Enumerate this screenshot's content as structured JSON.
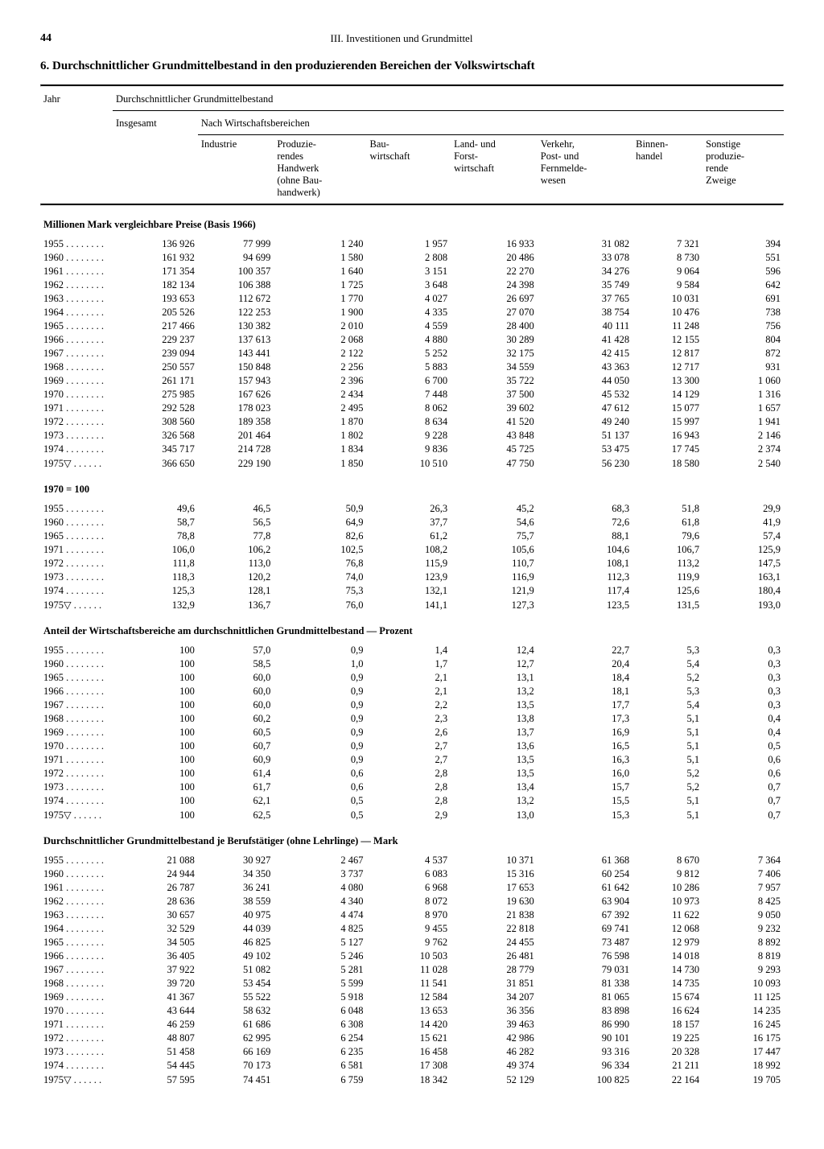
{
  "page_number": "44",
  "chapter": "III. Investitionen und Grundmittel",
  "title": "6. Durchschnittlicher Grundmittelbestand in den produzierenden Bereichen der Volkswirtschaft",
  "header": {
    "jahr": "Jahr",
    "main": "Durchschnittlicher Grundmittelbestand",
    "insgesamt": "Insgesamt",
    "nach": "Nach Wirtschaftsbereichen",
    "cols": [
      "Industrie",
      "Produzie-\nrendes\nHandwerk\n(ohne Bau-\nhandwerk)",
      "Bau-\nwirtschaft",
      "Land- und\nForst-\nwirtschaft",
      "Verkehr,\nPost- und\nFernmelde-\nwesen",
      "Binnen-\nhandel",
      "Sonstige\nproduzie-\nrende\nZweige"
    ]
  },
  "sections": [
    {
      "label": "Millionen Mark vergleichbare Preise (Basis 1966)",
      "rows": [
        {
          "y": "1955",
          "d": ". . . . . . . .",
          "v": [
            "136 926",
            "77 999",
            "1 240",
            "1 957",
            "16 933",
            "31 082",
            "7 321",
            "394"
          ]
        },
        {
          "y": "1960",
          "d": ". . . . . . . .",
          "v": [
            "161 932",
            "94 699",
            "1 580",
            "2 808",
            "20 486",
            "33 078",
            "8 730",
            "551"
          ]
        },
        {
          "y": "1961",
          "d": ". . . . . . . .",
          "v": [
            "171 354",
            "100 357",
            "1 640",
            "3 151",
            "22 270",
            "34 276",
            "9 064",
            "596"
          ]
        },
        {
          "y": "1962",
          "d": ". . . . . . . .",
          "v": [
            "182 134",
            "106 388",
            "1 725",
            "3 648",
            "24 398",
            "35 749",
            "9 584",
            "642"
          ]
        },
        {
          "y": "1963",
          "d": ". . . . . . . .",
          "v": [
            "193 653",
            "112 672",
            "1 770",
            "4 027",
            "26 697",
            "37 765",
            "10 031",
            "691"
          ]
        },
        {
          "y": "1964",
          "d": ". . . . . . . .",
          "v": [
            "205 526",
            "122 253",
            "1 900",
            "4 335",
            "27 070",
            "38 754",
            "10 476",
            "738"
          ]
        },
        {
          "y": "1965",
          "d": ". . . . . . . .",
          "v": [
            "217 466",
            "130 382",
            "2 010",
            "4 559",
            "28 400",
            "40 111",
            "11 248",
            "756"
          ]
        },
        {
          "y": "1966",
          "d": ". . . . . . . .",
          "v": [
            "229 237",
            "137 613",
            "2 068",
            "4 880",
            "30 289",
            "41 428",
            "12 155",
            "804"
          ]
        },
        {
          "y": "1967",
          "d": ". . . . . . . .",
          "v": [
            "239 094",
            "143 441",
            "2 122",
            "5 252",
            "32 175",
            "42 415",
            "12 817",
            "872"
          ]
        },
        {
          "y": "1968",
          "d": ". . . . . . . .",
          "v": [
            "250 557",
            "150 848",
            "2 256",
            "5 883",
            "34 559",
            "43 363",
            "12 717",
            "931"
          ]
        },
        {
          "y": "1969",
          "d": ". . . . . . . .",
          "v": [
            "261 171",
            "157 943",
            "2 396",
            "6 700",
            "35 722",
            "44 050",
            "13 300",
            "1 060"
          ]
        },
        {
          "y": "1970",
          "d": ". . . . . . . .",
          "v": [
            "275 985",
            "167 626",
            "2 434",
            "7 448",
            "37 500",
            "45 532",
            "14 129",
            "1 316"
          ]
        },
        {
          "y": "1971",
          "d": ". . . . . . . .",
          "v": [
            "292 528",
            "178 023",
            "2 495",
            "8 062",
            "39 602",
            "47 612",
            "15 077",
            "1 657"
          ]
        },
        {
          "y": "1972",
          "d": ". . . . . . . .",
          "v": [
            "308 560",
            "189 358",
            "1 870",
            "8 634",
            "41 520",
            "49 240",
            "15 997",
            "1 941"
          ]
        },
        {
          "y": "1973",
          "d": ". . . . . . . .",
          "v": [
            "326 568",
            "201 464",
            "1 802",
            "9 228",
            "43 848",
            "51 137",
            "16 943",
            "2 146"
          ]
        },
        {
          "y": "1974",
          "d": ". . . . . . . .",
          "v": [
            "345 717",
            "214 728",
            "1 834",
            "9 836",
            "45 725",
            "53 475",
            "17 745",
            "2 374"
          ]
        },
        {
          "y": "1975▽",
          "d": " . . . . . .",
          "v": [
            "366 650",
            "229 190",
            "1 850",
            "10 510",
            "47 750",
            "56 230",
            "18 580",
            "2 540"
          ]
        }
      ]
    },
    {
      "label": "1970 = 100",
      "rows": [
        {
          "y": "1955",
          "d": ". . . . . . . .",
          "v": [
            "49,6",
            "46,5",
            "50,9",
            "26,3",
            "45,2",
            "68,3",
            "51,8",
            "29,9"
          ]
        },
        {
          "y": "1960",
          "d": ". . . . . . . .",
          "v": [
            "58,7",
            "56,5",
            "64,9",
            "37,7",
            "54,6",
            "72,6",
            "61,8",
            "41,9"
          ]
        },
        {
          "y": "1965",
          "d": ". . . . . . . .",
          "v": [
            "78,8",
            "77,8",
            "82,6",
            "61,2",
            "75,7",
            "88,1",
            "79,6",
            "57,4"
          ]
        },
        {
          "y": "1971",
          "d": ". . . . . . . .",
          "v": [
            "106,0",
            "106,2",
            "102,5",
            "108,2",
            "105,6",
            "104,6",
            "106,7",
            "125,9"
          ]
        },
        {
          "y": "1972",
          "d": ". . . . . . . .",
          "v": [
            "111,8",
            "113,0",
            "76,8",
            "115,9",
            "110,7",
            "108,1",
            "113,2",
            "147,5"
          ]
        },
        {
          "y": "1973",
          "d": ". . . . . . . .",
          "v": [
            "118,3",
            "120,2",
            "74,0",
            "123,9",
            "116,9",
            "112,3",
            "119,9",
            "163,1"
          ]
        },
        {
          "y": "1974",
          "d": ". . . . . . . .",
          "v": [
            "125,3",
            "128,1",
            "75,3",
            "132,1",
            "121,9",
            "117,4",
            "125,6",
            "180,4"
          ]
        },
        {
          "y": "1975▽",
          "d": " . . . . . .",
          "v": [
            "132,9",
            "136,7",
            "76,0",
            "141,1",
            "127,3",
            "123,5",
            "131,5",
            "193,0"
          ]
        }
      ]
    },
    {
      "label": "Anteil der Wirtschaftsbereiche am durchschnittlichen Grundmittelbestand — Prozent",
      "rows": [
        {
          "y": "1955",
          "d": ". . . . . . . .",
          "v": [
            "100",
            "57,0",
            "0,9",
            "1,4",
            "12,4",
            "22,7",
            "5,3",
            "0,3"
          ]
        },
        {
          "y": "1960",
          "d": ". . . . . . . .",
          "v": [
            "100",
            "58,5",
            "1,0",
            "1,7",
            "12,7",
            "20,4",
            "5,4",
            "0,3"
          ]
        },
        {
          "y": "1965",
          "d": ". . . . . . . .",
          "v": [
            "100",
            "60,0",
            "0,9",
            "2,1",
            "13,1",
            "18,4",
            "5,2",
            "0,3"
          ]
        },
        {
          "y": "1966",
          "d": ". . . . . . . .",
          "v": [
            "100",
            "60,0",
            "0,9",
            "2,1",
            "13,2",
            "18,1",
            "5,3",
            "0,3"
          ]
        },
        {
          "y": "1967",
          "d": ". . . . . . . .",
          "v": [
            "100",
            "60,0",
            "0,9",
            "2,2",
            "13,5",
            "17,7",
            "5,4",
            "0,3"
          ]
        },
        {
          "y": "1968",
          "d": ". . . . . . . .",
          "v": [
            "100",
            "60,2",
            "0,9",
            "2,3",
            "13,8",
            "17,3",
            "5,1",
            "0,4"
          ]
        },
        {
          "y": "1969",
          "d": ". . . . . . . .",
          "v": [
            "100",
            "60,5",
            "0,9",
            "2,6",
            "13,7",
            "16,9",
            "5,1",
            "0,4"
          ]
        },
        {
          "y": "1970",
          "d": ". . . . . . . .",
          "v": [
            "100",
            "60,7",
            "0,9",
            "2,7",
            "13,6",
            "16,5",
            "5,1",
            "0,5"
          ]
        },
        {
          "y": "1971",
          "d": ". . . . . . . .",
          "v": [
            "100",
            "60,9",
            "0,9",
            "2,7",
            "13,5",
            "16,3",
            "5,1",
            "0,6"
          ]
        },
        {
          "y": "1972",
          "d": ". . . . . . . .",
          "v": [
            "100",
            "61,4",
            "0,6",
            "2,8",
            "13,5",
            "16,0",
            "5,2",
            "0,6"
          ]
        },
        {
          "y": "1973",
          "d": ". . . . . . . .",
          "v": [
            "100",
            "61,7",
            "0,6",
            "2,8",
            "13,4",
            "15,7",
            "5,2",
            "0,7"
          ]
        },
        {
          "y": "1974",
          "d": ". . . . . . . .",
          "v": [
            "100",
            "62,1",
            "0,5",
            "2,8",
            "13,2",
            "15,5",
            "5,1",
            "0,7"
          ]
        },
        {
          "y": "1975▽",
          "d": " . . . . . .",
          "v": [
            "100",
            "62,5",
            "0,5",
            "2,9",
            "13,0",
            "15,3",
            "5,1",
            "0,7"
          ]
        }
      ]
    },
    {
      "label": "Durchschnittlicher Grundmittelbestand je Berufstätiger (ohne Lehrlinge) — Mark",
      "rows": [
        {
          "y": "1955",
          "d": ". . . . . . . .",
          "v": [
            "21 088",
            "30 927",
            "2 467",
            "4 537",
            "10 371",
            "61 368",
            "8 670",
            "7 364"
          ]
        },
        {
          "y": "1960",
          "d": ". . . . . . . .",
          "v": [
            "24 944",
            "34 350",
            "3 737",
            "6 083",
            "15 316",
            "60 254",
            "9 812",
            "7 406"
          ]
        },
        {
          "y": "1961",
          "d": ". . . . . . . .",
          "v": [
            "26 787",
            "36 241",
            "4 080",
            "6 968",
            "17 653",
            "61 642",
            "10 286",
            "7 957"
          ]
        },
        {
          "y": "1962",
          "d": ". . . . . . . .",
          "v": [
            "28 636",
            "38 559",
            "4 340",
            "8 072",
            "19 630",
            "63 904",
            "10 973",
            "8 425"
          ]
        },
        {
          "y": "1963",
          "d": ". . . . . . . .",
          "v": [
            "30 657",
            "40 975",
            "4 474",
            "8 970",
            "21 838",
            "67 392",
            "11 622",
            "9 050"
          ]
        },
        {
          "y": "1964",
          "d": ". . . . . . . .",
          "v": [
            "32 529",
            "44 039",
            "4 825",
            "9 455",
            "22 818",
            "69 741",
            "12 068",
            "9 232"
          ]
        },
        {
          "y": "1965",
          "d": ". . . . . . . .",
          "v": [
            "34 505",
            "46 825",
            "5 127",
            "9 762",
            "24 455",
            "73 487",
            "12 979",
            "8 892"
          ]
        },
        {
          "y": "1966",
          "d": ". . . . . . . .",
          "v": [
            "36 405",
            "49 102",
            "5 246",
            "10 503",
            "26 481",
            "76 598",
            "14 018",
            "8 819"
          ]
        },
        {
          "y": "1967",
          "d": ". . . . . . . .",
          "v": [
            "37 922",
            "51 082",
            "5 281",
            "11 028",
            "28 779",
            "79 031",
            "14 730",
            "9 293"
          ]
        },
        {
          "y": "1968",
          "d": ". . . . . . . .",
          "v": [
            "39 720",
            "53 454",
            "5 599",
            "11 541",
            "31 851",
            "81 338",
            "14 735",
            "10 093"
          ]
        },
        {
          "y": "1969",
          "d": ". . . . . . . .",
          "v": [
            "41 367",
            "55 522",
            "5 918",
            "12 584",
            "34 207",
            "81 065",
            "15 674",
            "11 125"
          ]
        },
        {
          "y": "1970",
          "d": ". . . . . . . .",
          "v": [
            "43 644",
            "58 632",
            "6 048",
            "13 653",
            "36 356",
            "83 898",
            "16 624",
            "14 235"
          ]
        },
        {
          "y": "1971",
          "d": ". . . . . . . .",
          "v": [
            "46 259",
            "61 686",
            "6 308",
            "14 420",
            "39 463",
            "86 990",
            "18 157",
            "16 245"
          ]
        },
        {
          "y": "1972",
          "d": ". . . . . . . .",
          "v": [
            "48 807",
            "62 995",
            "6 254",
            "15 621",
            "42 986",
            "90 101",
            "19 225",
            "16 175"
          ]
        },
        {
          "y": "1973",
          "d": ". . . . . . . .",
          "v": [
            "51 458",
            "66 169",
            "6 235",
            "16 458",
            "46 282",
            "93 316",
            "20 328",
            "17 447"
          ]
        },
        {
          "y": "1974",
          "d": ". . . . . . . .",
          "v": [
            "54 445",
            "70 173",
            "6 581",
            "17 308",
            "49 374",
            "96 334",
            "21 211",
            "18 992"
          ]
        },
        {
          "y": "1975▽",
          "d": " . . . . . .",
          "v": [
            "57 595",
            "74 451",
            "6 759",
            "18 342",
            "52 129",
            "100 825",
            "22 164",
            "19 705"
          ]
        }
      ]
    }
  ]
}
